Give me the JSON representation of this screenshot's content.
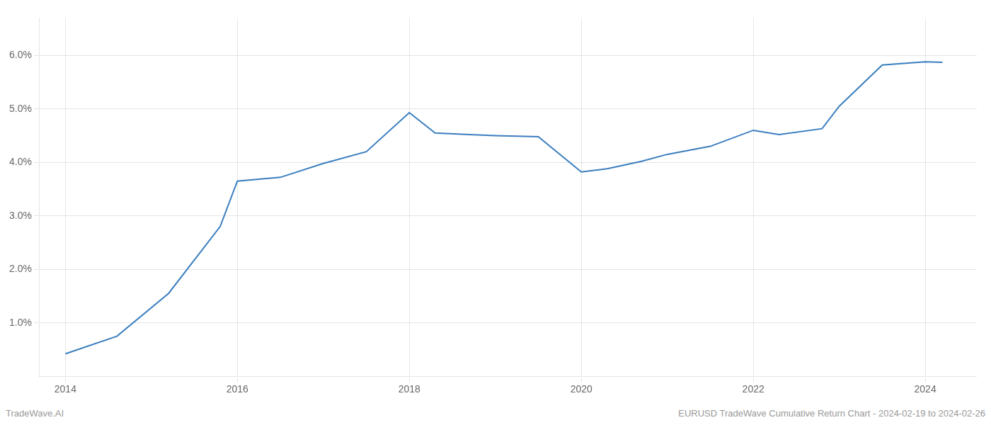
{
  "chart_data": {
    "type": "line",
    "x": [
      2014.0,
      2014.6,
      2015.2,
      2015.8,
      2016.0,
      2016.5,
      2017.0,
      2017.5,
      2018.0,
      2018.3,
      2018.7,
      2019.0,
      2019.5,
      2020.0,
      2020.3,
      2020.7,
      2021.0,
      2021.5,
      2022.0,
      2022.3,
      2022.8,
      2023.0,
      2023.5,
      2024.0,
      2024.2
    ],
    "values": [
      0.42,
      0.75,
      1.55,
      2.8,
      3.65,
      3.72,
      3.98,
      4.2,
      4.93,
      4.55,
      4.52,
      4.5,
      4.48,
      3.82,
      3.88,
      4.02,
      4.15,
      4.3,
      4.6,
      4.52,
      4.63,
      5.05,
      5.82,
      5.88,
      5.87
    ],
    "color": "#3a7ebf",
    "xlim": [
      2013.7,
      2024.6
    ],
    "xticks": [
      2014,
      2016,
      2018,
      2020,
      2022,
      2024
    ],
    "ylim": [
      0.0,
      6.7
    ],
    "yticks": [
      {
        "value": 1.0,
        "label": "1.0%"
      },
      {
        "value": 2.0,
        "label": "2.0%"
      },
      {
        "value": 3.0,
        "label": "3.0%"
      },
      {
        "value": 4.0,
        "label": "4.0%"
      },
      {
        "value": 5.0,
        "label": "5.0%"
      },
      {
        "value": 6.0,
        "label": "6.0%"
      }
    ],
    "grid": true,
    "annotations": [
      "TradeWave.AI",
      "EURUSD TradeWave Cumulative Return Chart - 2024-02-19 to 2024-02-26"
    ]
  }
}
